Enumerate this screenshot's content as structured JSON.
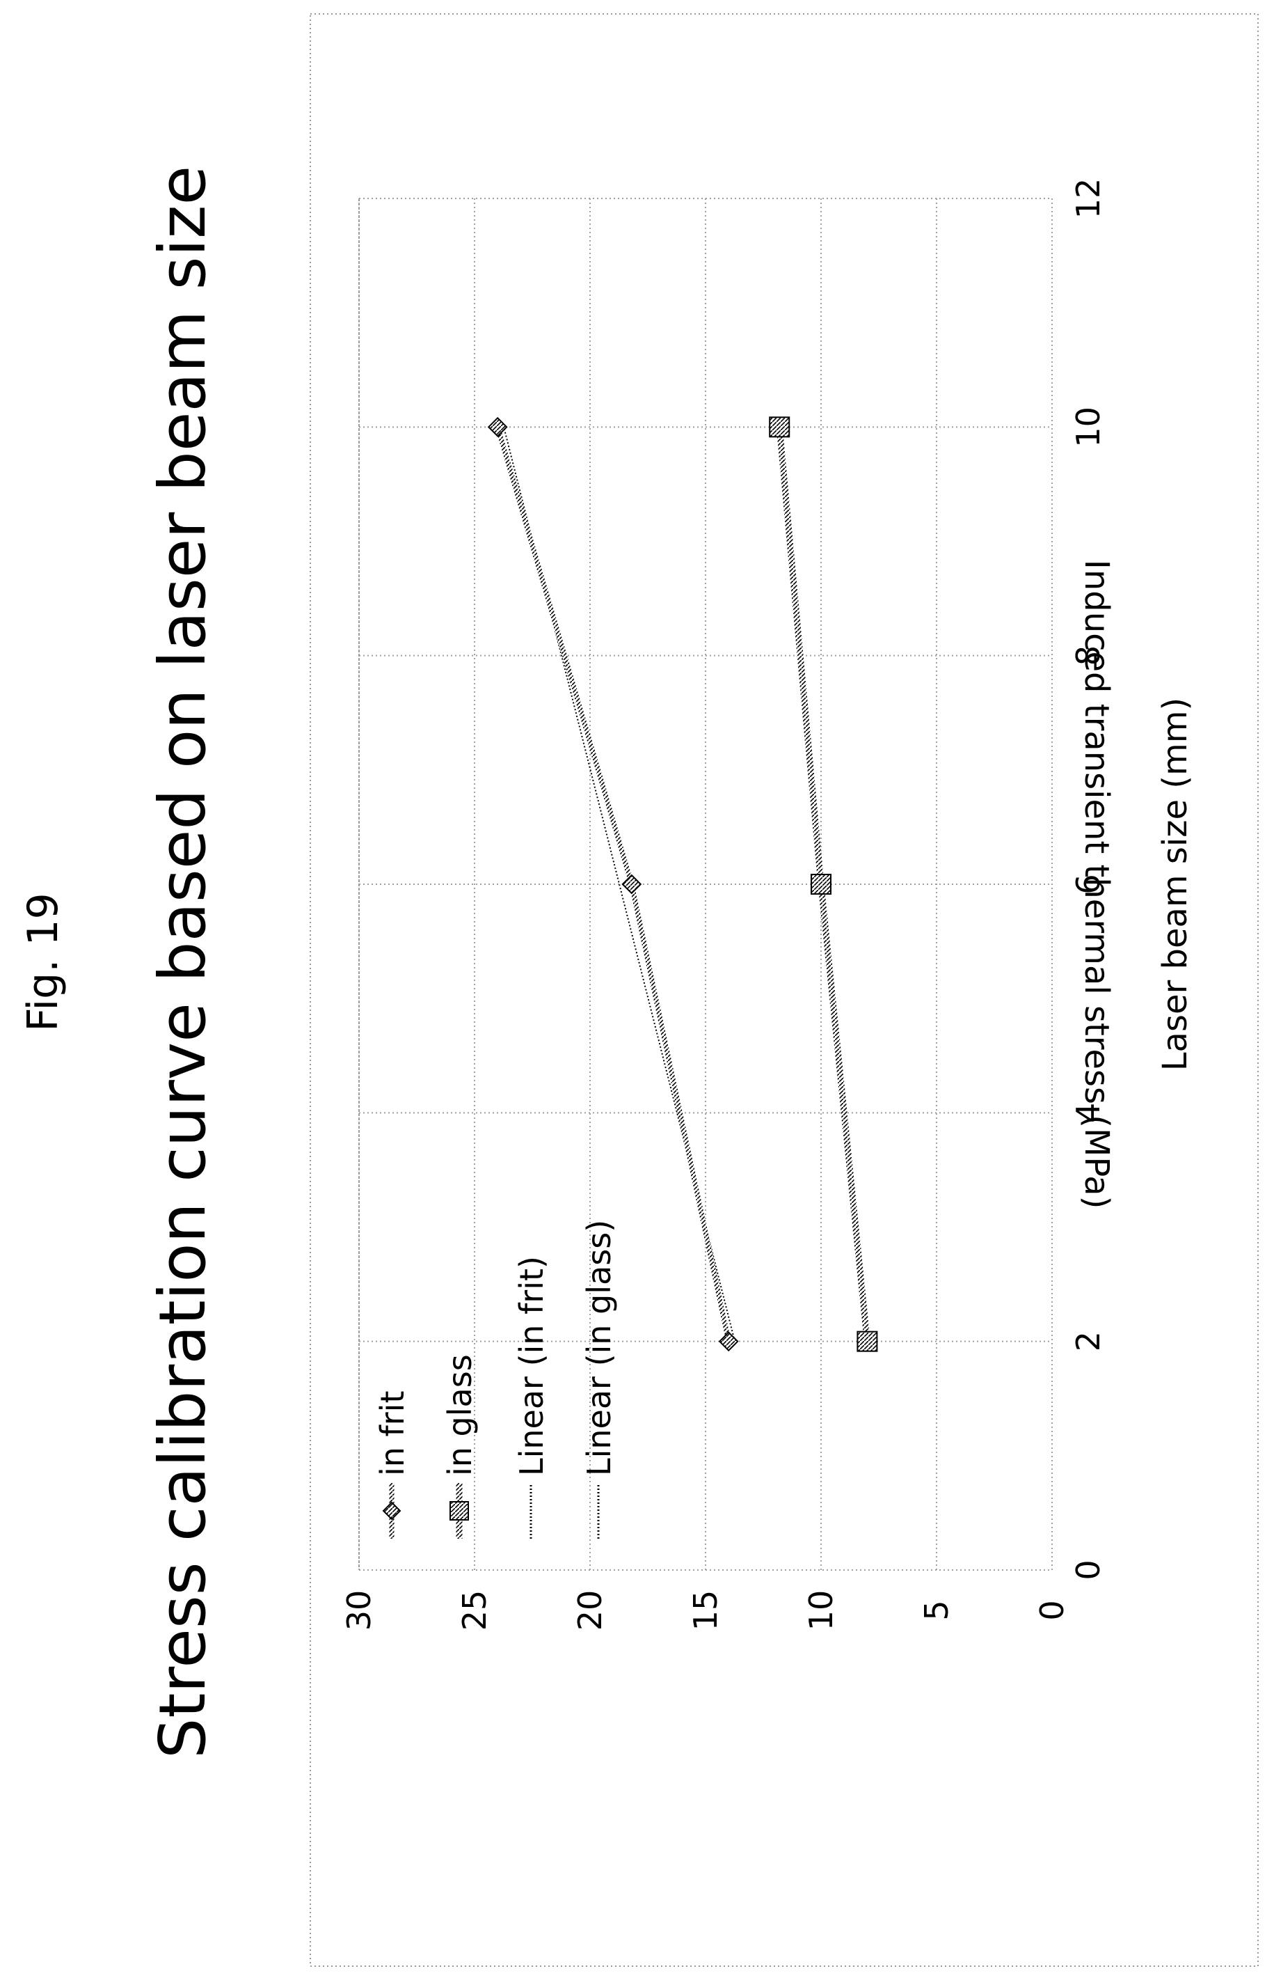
{
  "figure": {
    "label": "Fig. 19"
  },
  "chart_data": {
    "type": "line",
    "title": "Stress calibration curve based on laser beam size",
    "xlabel": "Laser beam size (mm)",
    "ylabel": "Induced transient thermal stress (MPa)",
    "xlim": [
      0,
      12
    ],
    "ylim": [
      0,
      30
    ],
    "xticks": [
      "0",
      "2",
      "4",
      "6",
      "8",
      "10",
      "12"
    ],
    "yticks": [
      "0",
      "5",
      "10",
      "15",
      "20",
      "25",
      "30"
    ],
    "grid": true,
    "legend_position": "top-left",
    "orientation": "rotated-90-ccw",
    "series": [
      {
        "name": "in frit",
        "marker": "diamond",
        "x": [
          2,
          6,
          10
        ],
        "y": [
          14,
          18.2,
          24
        ]
      },
      {
        "name": "in glass",
        "marker": "square",
        "x": [
          2,
          6,
          10
        ],
        "y": [
          8,
          10,
          11.8
        ]
      }
    ],
    "trendlines": [
      {
        "name": "Linear (in frit)",
        "series": "in frit",
        "kind": "linear"
      },
      {
        "name": "Linear (in glass)",
        "series": "in glass",
        "kind": "linear"
      }
    ]
  }
}
